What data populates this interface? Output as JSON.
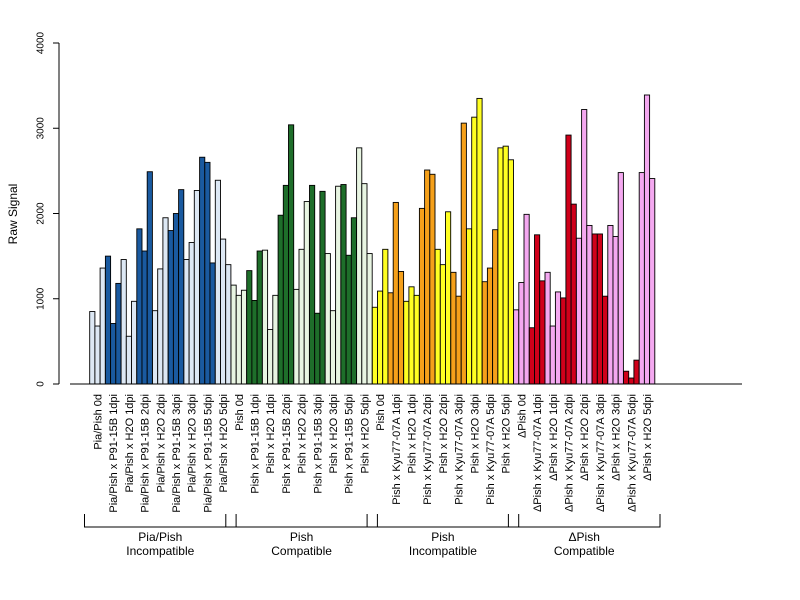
{
  "chart_data": {
    "type": "bar",
    "ylabel": "Raw Signal",
    "xlabel": "",
    "ylim": [
      0,
      4000
    ],
    "yticks": [
      0,
      1000,
      2000,
      3000,
      4000
    ],
    "grid": false,
    "legend": "none",
    "categories": [
      "Pia/Pish 0d",
      "Pia/Pish x P91-15B 1dpi",
      "Pia/Pish x H2O 1dpi",
      "Pia/Pish x P91-15B 2dpi",
      "Pia/Pish x H2O 2dpi",
      "Pia/Pish x P91-15B 3dpi",
      "Pia/Pish x H2O 3dpi",
      "Pia/Pish x P91-15B 5dpi",
      "Pia/Pish x H2O 5dpi",
      "Pish 0d",
      "Pish x P91-15B 1dpi",
      "Pish x H2O 1dpi",
      "Pish x P91-15B 2dpi",
      "Pish x H2O 2dpi",
      "Pish x P91-15B 3dpi",
      "Pish x H2O 3dpi",
      "Pish x P91-15B 5dpi",
      "Pish x H2O 5dpi",
      "Pish 0d",
      "Pish x Kyu77-07A 1dpi",
      "Pish x H2O 1dpi",
      "Pish x Kyu77-07A 2dpi",
      "Pish x H2O 2dpi",
      "Pish x Kyu77-07A 3dpi",
      "Pish x H2O 3dpi",
      "Pish x Kyu77-07A 5dpi",
      "Pish x H2O 5dpi",
      "ΔPish 0d",
      "ΔPish x Kyu77-07A 1dpi",
      "ΔPish x H2O 1dpi",
      "ΔPish x Kyu77-07A 2dpi",
      "ΔPish x H2O 2dpi",
      "ΔPish x Kyu77-07A 3dpi",
      "ΔPish x H2O 3dpi",
      "ΔPish x Kyu77-07A 5dpi",
      "ΔPish x H2O 5dpi"
    ],
    "replicates": 3,
    "values": [
      [
        850,
        680,
        1360
      ],
      [
        1500,
        710,
        1180
      ],
      [
        1460,
        560,
        970
      ],
      [
        1820,
        1560,
        2490
      ],
      [
        860,
        1350,
        1950
      ],
      [
        1800,
        2000,
        2280
      ],
      [
        1460,
        1660,
        2270
      ],
      [
        2660,
        2600,
        1420
      ],
      [
        2390,
        1700,
        1400
      ],
      [
        1160,
        1040,
        1100
      ],
      [
        1330,
        980,
        1560
      ],
      [
        1570,
        640,
        1040
      ],
      [
        1980,
        2330,
        3040
      ],
      [
        1110,
        1580,
        2140
      ],
      [
        2330,
        830,
        2260
      ],
      [
        1530,
        860,
        2320
      ],
      [
        2340,
        1510,
        1950
      ],
      [
        2770,
        2350,
        1530
      ],
      [
        900,
        1090,
        1580
      ],
      [
        1070,
        2130,
        1320
      ],
      [
        970,
        1140,
        1040
      ],
      [
        2060,
        2510,
        2460
      ],
      [
        1580,
        1400,
        2020
      ],
      [
        1310,
        1030,
        3060
      ],
      [
        1820,
        3130,
        3350
      ],
      [
        1200,
        1360,
        1810
      ],
      [
        2770,
        2790,
        2630
      ],
      [
        870,
        1190,
        1990
      ],
      [
        660,
        1750,
        1210
      ],
      [
        1310,
        680,
        1080
      ],
      [
        1010,
        2920,
        2110
      ],
      [
        1710,
        3220,
        1860
      ],
      [
        1760,
        1760,
        1030
      ],
      [
        1860,
        1730,
        2480
      ],
      [
        150,
        70,
        280
      ],
      [
        2480,
        3390,
        2410
      ]
    ],
    "bar_colors": [
      "#DDE8F4",
      "#1A5AA0",
      "#DDE8F4",
      "#1A5AA0",
      "#DDE8F4",
      "#1A5AA0",
      "#DDE8F4",
      "#1A5AA0",
      "#DDE8F4",
      "#E8F5E2",
      "#1E6E2A",
      "#E8F5E2",
      "#1E6E2A",
      "#E8F5E2",
      "#1E6E2A",
      "#E8F5E2",
      "#1E6E2A",
      "#E8F5E2",
      "#FFFF22",
      "#F5A01A",
      "#FFFF22",
      "#F5A01A",
      "#FFFF22",
      "#F5A01A",
      "#FFFF22",
      "#F5A01A",
      "#FFFF22",
      "#F4A8F0",
      "#D0001A",
      "#F4A8F0",
      "#D0001A",
      "#F4A8F0",
      "#D0001A",
      "#F4A8F0",
      "#D0001A",
      "#F4A8F0"
    ],
    "groups": [
      {
        "label_line1": "Pia/Pish",
        "label_line2": "Incompatible",
        "start": 0,
        "end": 8
      },
      {
        "label_line1": "Pish",
        "label_line2": "Compatible",
        "start": 9,
        "end": 17
      },
      {
        "label_line1": "Pish",
        "label_line2": "Incompatible",
        "start": 18,
        "end": 26
      },
      {
        "label_line1": "ΔPish",
        "label_line2": "Compatible",
        "start": 27,
        "end": 35
      }
    ]
  }
}
